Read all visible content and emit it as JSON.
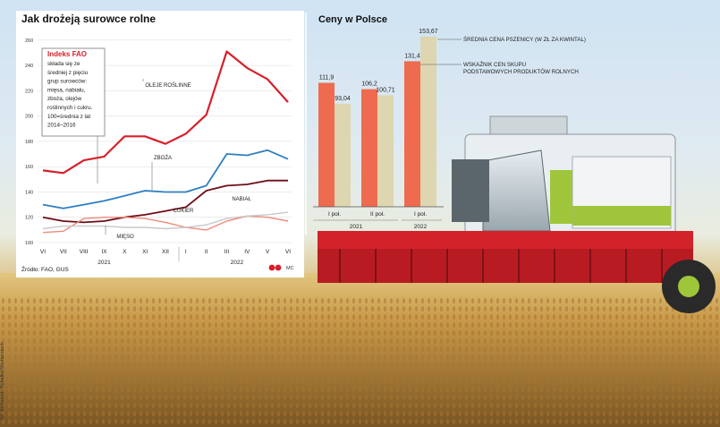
{
  "left_panel": {
    "title": "Jak drożeją surowce rolne",
    "source": "Źródło: FAO, GUS",
    "logo_text": "MC",
    "info_box": {
      "heading": "Indeks FAO",
      "lines": [
        "składa się ze",
        "średniej z pięciu",
        "grup surowców:",
        "mięsa, nabiału,",
        "zboża, olejów",
        "roślinnych i cukru.",
        "100=średnia z lat",
        "2014–2016"
      ]
    }
  },
  "right_panel": {
    "title": "Ceny w Polsce"
  },
  "photo_credit": "fot. Aleksandr Rybalko/Shutterstock",
  "colors": {
    "oleje": "#d7202a",
    "zboza": "#2e7fc1",
    "nabial": "#6d0d18",
    "cukier": "#f08a7c",
    "mieso": "#c9c9c9",
    "bar_index": "#ee6b4f",
    "bar_wheat": "#ddd6b0"
  },
  "chart_data": [
    {
      "type": "line",
      "title": "Jak drożeją surowce rolne",
      "categories": [
        "VI",
        "VII",
        "VIII",
        "IX",
        "X",
        "XI",
        "XII",
        "I",
        "II",
        "III",
        "IV",
        "V",
        "VI"
      ],
      "year_labels": [
        {
          "label": "2021",
          "from": 0,
          "to": 6
        },
        {
          "label": "2022",
          "from": 7,
          "to": 12
        }
      ],
      "yticks": [
        100,
        120,
        140,
        160,
        180,
        200,
        220,
        240,
        260
      ],
      "ylim": [
        100,
        262
      ],
      "grid": true,
      "series": [
        {
          "name": "OLEJE ROŚLINNE",
          "values": [
            157,
            155,
            165,
            168,
            184,
            184,
            178,
            186,
            201,
            251,
            238,
            229,
            211
          ]
        },
        {
          "name": "ZBOŻA",
          "values": [
            130,
            127,
            130,
            133,
            137,
            141,
            140,
            140,
            145,
            170,
            169,
            173,
            166
          ]
        },
        {
          "name": "NABIAŁ",
          "values": [
            120,
            117,
            116,
            117,
            120,
            122,
            125,
            128,
            141,
            145,
            146,
            149,
            149
          ]
        },
        {
          "name": "CUKIER",
          "values": [
            108,
            109,
            119,
            120,
            120,
            119,
            116,
            112,
            110,
            117,
            121,
            120,
            117
          ]
        },
        {
          "name": "MIĘSO",
          "values": [
            111,
            113,
            113,
            113,
            112,
            112,
            111,
            112,
            114,
            119,
            121,
            122,
            124
          ]
        }
      ]
    },
    {
      "type": "bar",
      "title": "Ceny w Polsce",
      "categories": [
        "I poł.",
        "II poł.",
        "I poł."
      ],
      "year_labels": [
        {
          "label": "2021",
          "from": 0,
          "to": 1
        },
        {
          "label": "2022",
          "from": 2,
          "to": 2
        }
      ],
      "ylim": [
        0,
        160
      ],
      "series": [
        {
          "name": "WSKAŹNIK CEN SKUPU PODSTAWOWYCH PRODUKTÓW ROLNYCH",
          "values": [
            111.9,
            106.2,
            131.4
          ],
          "labels": [
            "111,9",
            "106,2",
            "131,4"
          ]
        },
        {
          "name": "ŚREDNIA CENA PSZENICY (W ZŁ ZA KWINTAL)",
          "values": [
            93.04,
            100.71,
            153.67
          ],
          "labels": [
            "93,04",
            "100,71",
            "153,67"
          ]
        }
      ]
    }
  ]
}
